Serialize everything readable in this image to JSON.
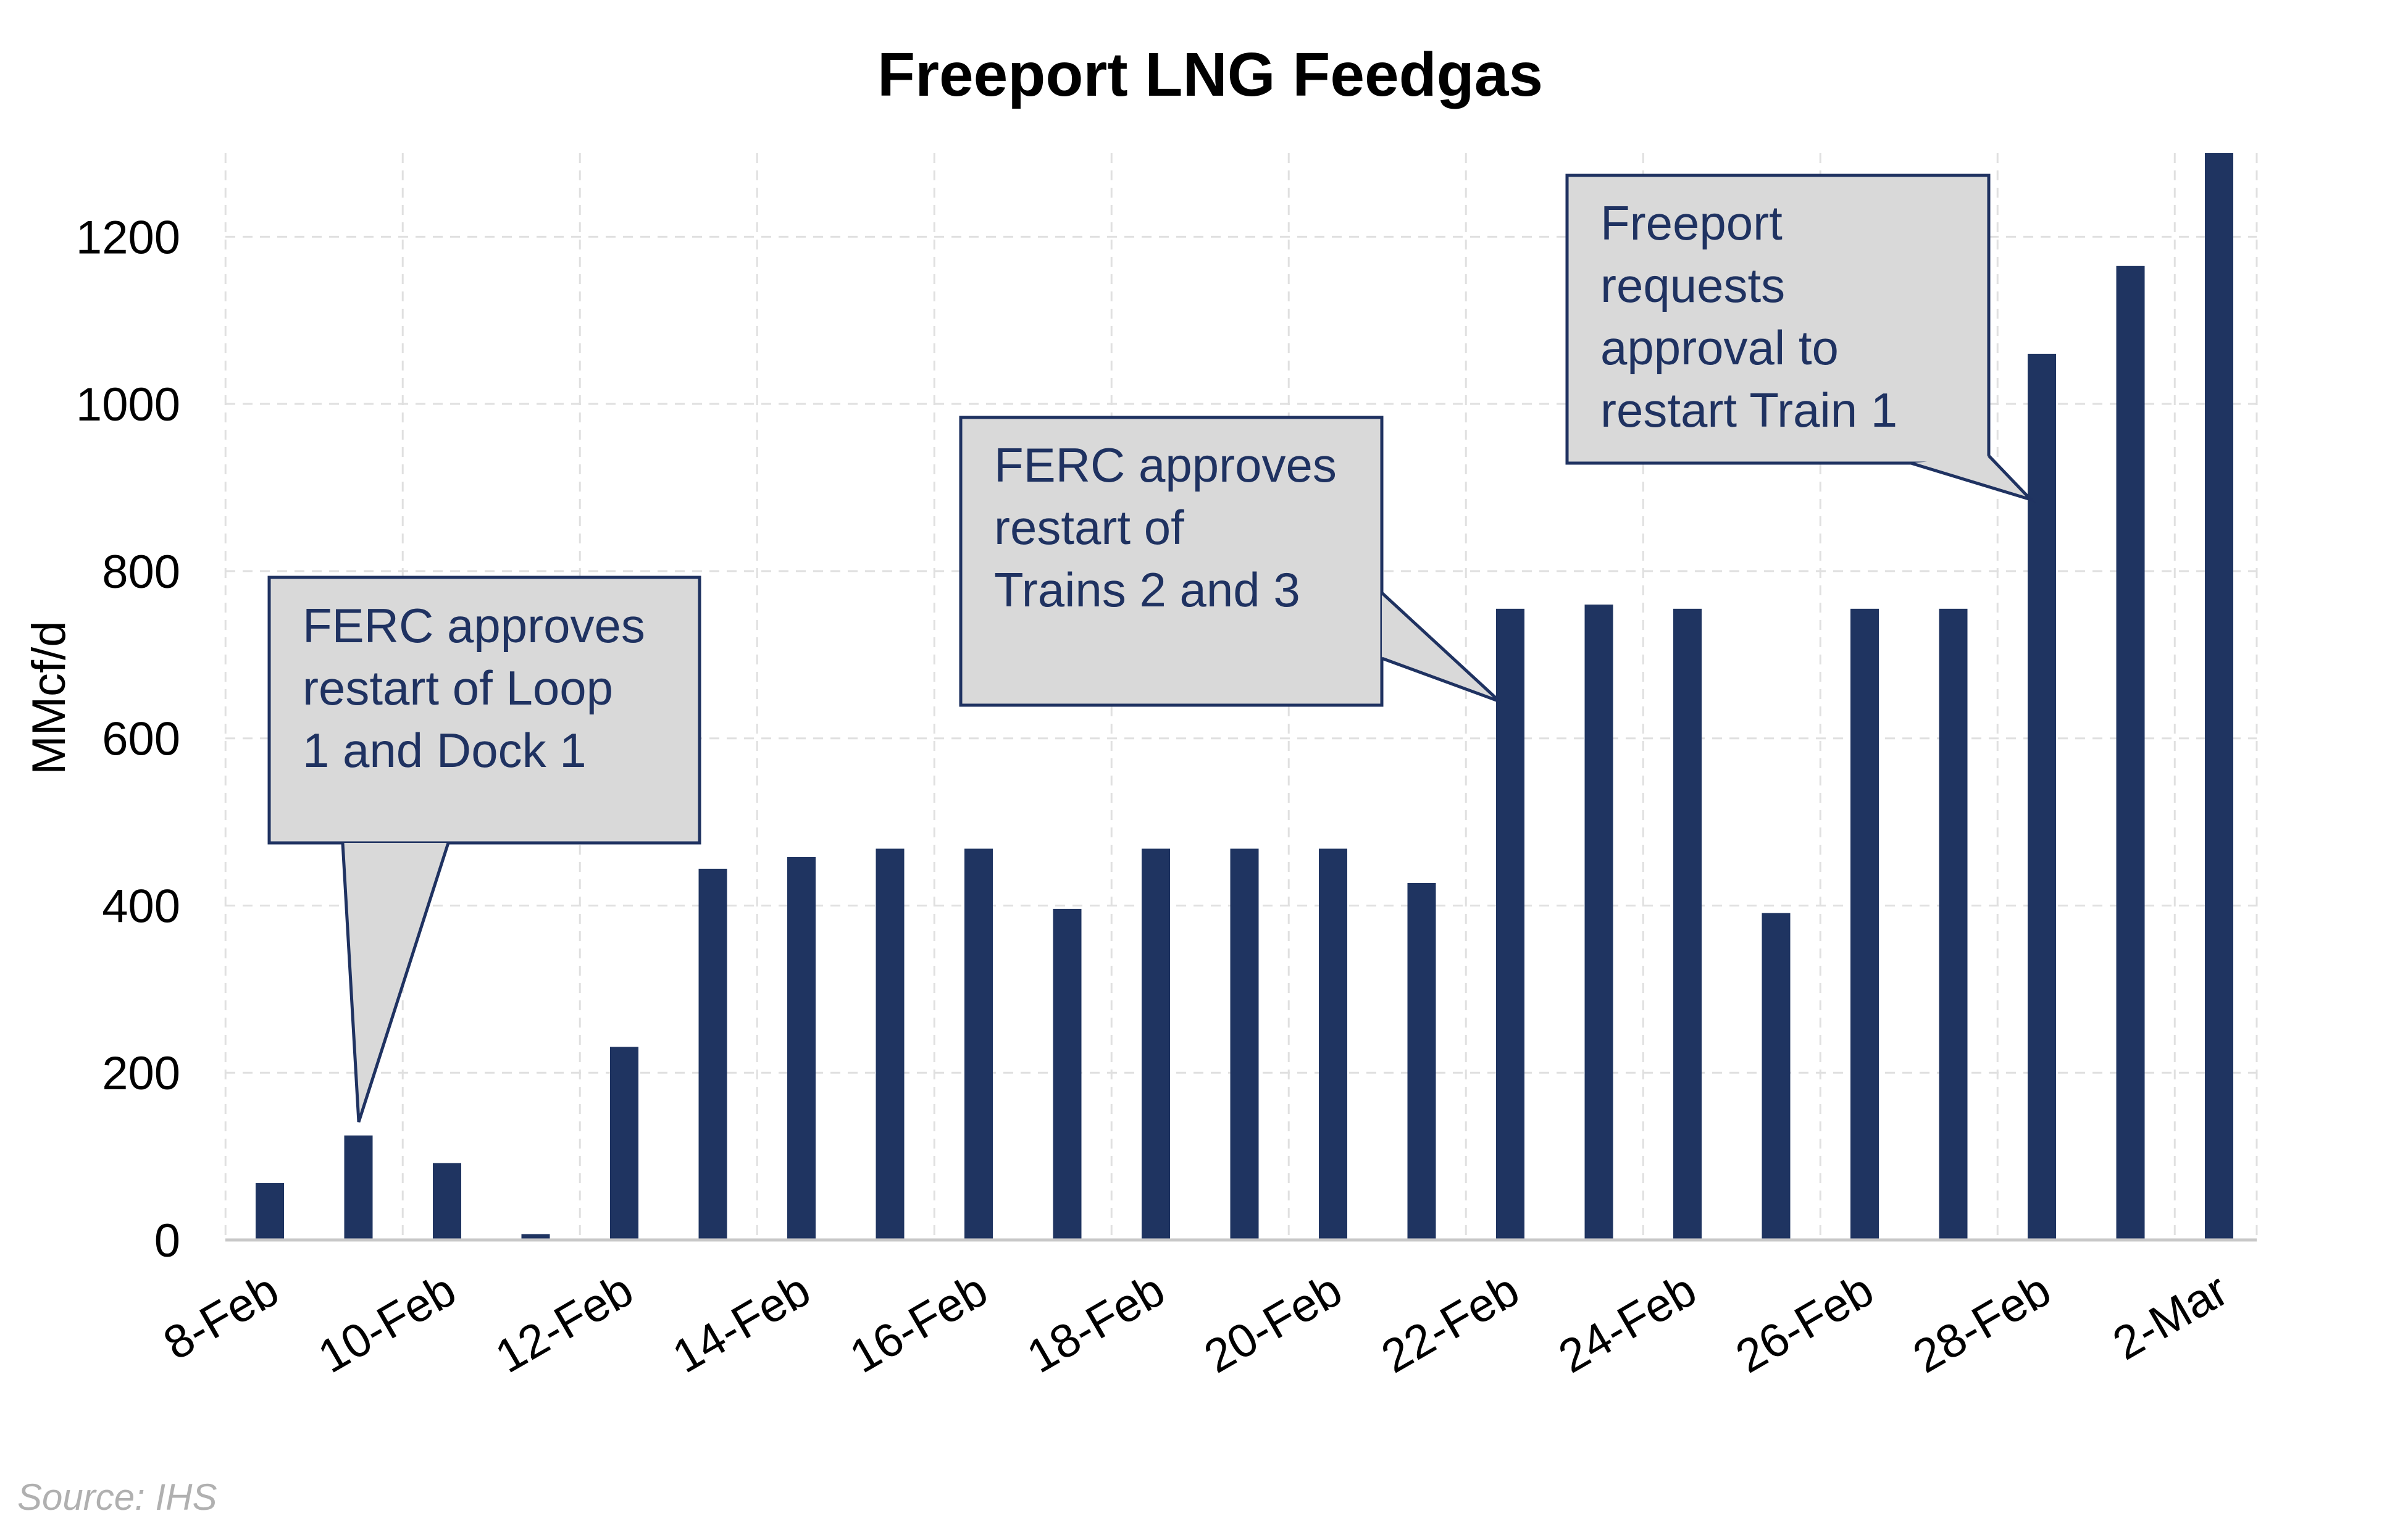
{
  "chart_data": {
    "type": "bar",
    "title": "Freeport LNG Feedgas",
    "xlabel": "",
    "ylabel": "MMcf/d",
    "ylim": [
      0,
      1300
    ],
    "yticks": [
      0,
      200,
      400,
      600,
      800,
      1000,
      1200
    ],
    "grid": true,
    "legend": "none",
    "bar_color": "#1f3461",
    "categories": [
      "8-Feb",
      "9-Feb",
      "10-Feb",
      "11-Feb",
      "12-Feb",
      "13-Feb",
      "14-Feb",
      "15-Feb",
      "16-Feb",
      "17-Feb",
      "18-Feb",
      "19-Feb",
      "20-Feb",
      "21-Feb",
      "22-Feb",
      "23-Feb",
      "24-Feb",
      "25-Feb",
      "26-Feb",
      "27-Feb",
      "28-Feb",
      "1-Mar",
      "2-Mar"
    ],
    "xtick_labels": [
      "8-Feb",
      "10-Feb",
      "12-Feb",
      "14-Feb",
      "16-Feb",
      "18-Feb",
      "20-Feb",
      "22-Feb",
      "24-Feb",
      "26-Feb",
      "28-Feb",
      "2-Mar"
    ],
    "values": [
      68,
      125,
      92,
      7,
      231,
      444,
      458,
      468,
      468,
      396,
      468,
      468,
      468,
      427,
      755,
      760,
      755,
      391,
      755,
      755,
      1060,
      1165,
      1300
    ],
    "annotations": [
      {
        "lines": [
          "FERC approves",
          "restart of Loop",
          "1 and Dock 1"
        ],
        "target": "9-Feb"
      },
      {
        "lines": [
          "FERC approves",
          "restart of",
          "Trains 2 and 3"
        ],
        "target": "22-Feb"
      },
      {
        "lines": [
          "Freeport",
          "requests",
          "approval to",
          "restart Train 1"
        ],
        "target": "28-Feb"
      }
    ],
    "source": "Source: IHS"
  }
}
